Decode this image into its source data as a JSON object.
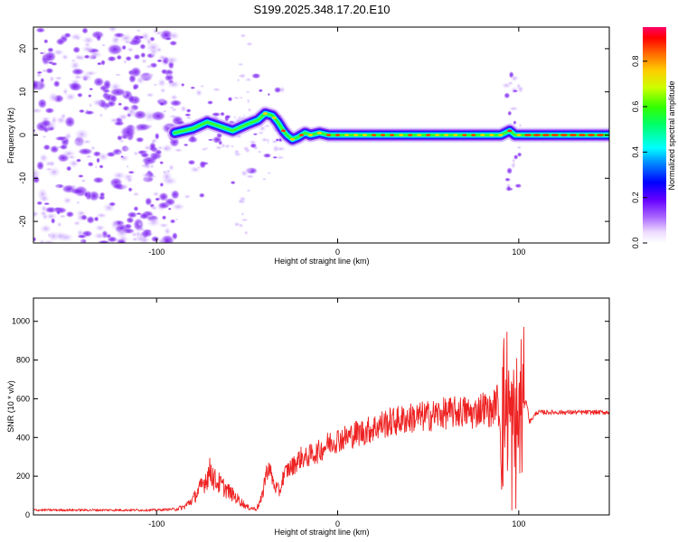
{
  "title": "S199.2025.348.17.20.E10",
  "chart_data": [
    {
      "type": "heatmap",
      "name": "spectrogram",
      "xlabel": "Height of straight line (km)",
      "ylabel": "Frequency (Hz)",
      "xlim": [
        -168,
        150
      ],
      "ylim": [
        -25,
        25
      ],
      "xticks": [
        -100,
        0,
        100
      ],
      "yticks": [
        20,
        10,
        0,
        -10,
        -20
      ],
      "colorbar": {
        "label": "Normalized spectral amplitude",
        "range": [
          0.0,
          0.95
        ],
        "ticks": [
          0.0,
          0.2,
          0.4,
          0.6,
          0.8
        ],
        "colors": [
          "#ffffff",
          "#cc99ff",
          "#7700ff",
          "#0000ff",
          "#00ffff",
          "#00ff00",
          "#ffff00",
          "#ff9900",
          "#ff0000",
          "#ff0066"
        ]
      },
      "ridge": {
        "description": "dominant frequency track",
        "x": [
          -90,
          -80,
          -72,
          -65,
          -58,
          -50,
          -44,
          -40,
          -36,
          -33,
          -30,
          -28,
          -25,
          -22,
          -18,
          -15,
          -10,
          -5,
          0,
          20,
          40,
          60,
          80,
          90,
          95,
          98,
          100,
          110,
          150
        ],
        "y": [
          0.5,
          1.5,
          3.0,
          2.0,
          1.0,
          2.5,
          3.5,
          5.0,
          4.5,
          3.0,
          1.0,
          0.0,
          -1.0,
          -0.5,
          0.5,
          0.0,
          0.5,
          0.0,
          0.0,
          0.0,
          0.0,
          0.0,
          0.0,
          0.0,
          1.0,
          0.0,
          0.0,
          0.0,
          0.0
        ]
      }
    },
    {
      "type": "line",
      "name": "snr",
      "xlabel": "Height of straight line (km)",
      "ylabel": "SNR (10 * v/v)",
      "xlim": [
        -168,
        150
      ],
      "ylim": [
        0,
        1120
      ],
      "xticks": [
        -100,
        0,
        100
      ],
      "yticks": [
        0,
        200,
        400,
        600,
        800,
        1000
      ],
      "color": "#ee2222",
      "series": [
        {
          "name": "SNR envelope",
          "x": [
            -168,
            -150,
            -120,
            -100,
            -90,
            -85,
            -80,
            -75,
            -72,
            -70,
            -68,
            -65,
            -60,
            -55,
            -50,
            -45,
            -42,
            -40,
            -38,
            -35,
            -32,
            -30,
            -28,
            -25,
            -22,
            -20,
            -18,
            -15,
            -12,
            -10,
            -5,
            0,
            5,
            10,
            15,
            20,
            25,
            30,
            35,
            40,
            45,
            50,
            55,
            60,
            65,
            70,
            75,
            80,
            85,
            88,
            90,
            92,
            94,
            96,
            98,
            100,
            101,
            102,
            104,
            106,
            110,
            120,
            130,
            140,
            150
          ],
          "y": [
            25,
            25,
            25,
            25,
            30,
            40,
            80,
            150,
            200,
            230,
            180,
            160,
            120,
            80,
            40,
            30,
            80,
            200,
            250,
            150,
            120,
            200,
            230,
            250,
            280,
            300,
            290,
            310,
            320,
            330,
            370,
            390,
            400,
            420,
            430,
            450,
            470,
            480,
            490,
            500,
            505,
            510,
            520,
            525,
            530,
            535,
            520,
            560,
            530,
            600,
            450,
            560,
            600,
            400,
            420,
            480,
            560,
            520,
            600,
            480,
            530,
            530,
            530,
            530,
            530
          ]
        }
      ]
    }
  ]
}
